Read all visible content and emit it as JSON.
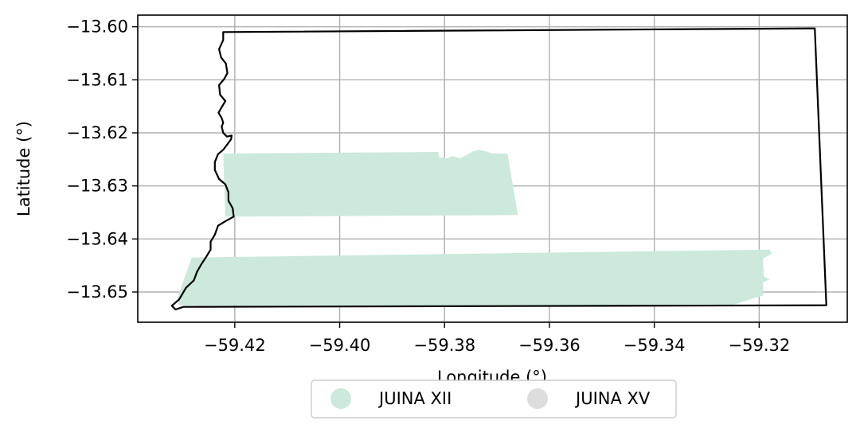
{
  "chart_data": {
    "type": "map",
    "xlabel": "Longitude (°)",
    "ylabel": "Latitude (°)",
    "xlim": [
      -59.4385,
      -59.3032
    ],
    "ylim": [
      -13.6557,
      -13.5978
    ],
    "x_ticks": [
      -59.42,
      -59.4,
      -59.38,
      -59.36,
      -59.34,
      -59.32
    ],
    "x_tick_labels": [
      "−59.42",
      "−59.40",
      "−59.38",
      "−59.36",
      "−59.34",
      "−59.32"
    ],
    "y_ticks": [
      -13.6,
      -13.61,
      -13.62,
      -13.63,
      -13.64,
      -13.65
    ],
    "y_tick_labels": [
      "−13.60",
      "−13.61",
      "−13.62",
      "−13.63",
      "−13.64",
      "−13.65"
    ],
    "grid": true,
    "legend_position": "bottom-center",
    "legend": [
      {
        "label": "JUINA XII",
        "color": "#cce9dc"
      },
      {
        "label": "JUINA XV",
        "color": "#dddddd"
      }
    ],
    "boundary_color": "#000000",
    "boundary": [
      [
        -59.4222,
        -13.601
      ],
      [
        -59.3094,
        -13.6003
      ],
      [
        -59.3072,
        -13.6525
      ],
      [
        -59.4298,
        -13.6528
      ],
      [
        -59.4313,
        -13.6533
      ],
      [
        -59.432,
        -13.6526
      ],
      [
        -59.4306,
        -13.6514
      ],
      [
        -59.4293,
        -13.6492
      ],
      [
        -59.4278,
        -13.6478
      ],
      [
        -59.4272,
        -13.6462
      ],
      [
        -59.4264,
        -13.6448
      ],
      [
        -59.4254,
        -13.6433
      ],
      [
        -59.4246,
        -13.642
      ],
      [
        -59.4246,
        -13.6405
      ],
      [
        -59.4238,
        -13.6392
      ],
      [
        -59.4232,
        -13.6375
      ],
      [
        -59.4217,
        -13.6366
      ],
      [
        -59.4202,
        -13.6358
      ],
      [
        -59.4204,
        -13.6342
      ],
      [
        -59.4212,
        -13.6328
      ],
      [
        -59.4212,
        -13.6312
      ],
      [
        -59.4218,
        -13.6297
      ],
      [
        -59.423,
        -13.6287
      ],
      [
        -59.4238,
        -13.627
      ],
      [
        -59.4238,
        -13.6255
      ],
      [
        -59.4232,
        -13.624
      ],
      [
        -59.4222,
        -13.6232
      ],
      [
        -59.4216,
        -13.6224
      ],
      [
        -59.4207,
        -13.6212
      ],
      [
        -59.4206,
        -13.6205
      ],
      [
        -59.4215,
        -13.6207
      ],
      [
        -59.4222,
        -13.62
      ],
      [
        -59.4225,
        -13.6188
      ],
      [
        -59.4222,
        -13.6181
      ],
      [
        -59.4225,
        -13.6172
      ],
      [
        -59.4231,
        -13.6162
      ],
      [
        -59.4224,
        -13.615
      ],
      [
        -59.4218,
        -13.614
      ],
      [
        -59.4228,
        -13.6128
      ],
      [
        -59.423,
        -13.611
      ],
      [
        -59.422,
        -13.6098
      ],
      [
        -59.4214,
        -13.6087
      ],
      [
        -59.4217,
        -13.6069
      ],
      [
        -59.4226,
        -13.6058
      ],
      [
        -59.423,
        -13.6042
      ],
      [
        -59.4222,
        -13.6025
      ],
      [
        -59.4222,
        -13.601
      ]
    ],
    "areas": [
      {
        "name": "JUINA XII",
        "color": "#cce9dc",
        "polygons": [
          [
            [
              -59.4222,
              -13.6239
            ],
            [
              -59.3812,
              -13.6236
            ],
            [
              -59.381,
              -13.6246
            ],
            [
              -59.3796,
              -13.6248
            ],
            [
              -59.3784,
              -13.6244
            ],
            [
              -59.377,
              -13.6248
            ],
            [
              -59.3758,
              -13.6242
            ],
            [
              -59.3746,
              -13.6235
            ],
            [
              -59.3734,
              -13.6232
            ],
            [
              -59.3721,
              -13.6235
            ],
            [
              -59.3708,
              -13.6239
            ],
            [
              -59.368,
              -13.6239
            ],
            [
              -59.366,
              -13.6355
            ],
            [
              -59.4218,
              -13.6358
            ],
            [
              -59.4222,
              -13.6239
            ]
          ],
          [
            [
              -59.4282,
              -13.6435
            ],
            [
              -59.318,
              -13.642
            ],
            [
              -59.3176,
              -13.6428
            ],
            [
              -59.3193,
              -13.6437
            ],
            [
              -59.3191,
              -13.6471
            ],
            [
              -59.318,
              -13.6476
            ],
            [
              -59.3193,
              -13.6482
            ],
            [
              -59.3192,
              -13.6506
            ],
            [
              -59.3252,
              -13.6525
            ],
            [
              -59.4306,
              -13.6525
            ],
            [
              -59.4309,
              -13.651
            ],
            [
              -59.4282,
              -13.6435
            ]
          ]
        ]
      },
      {
        "name": "JUINA XV",
        "color": "#dddddd",
        "polygons": []
      }
    ]
  }
}
